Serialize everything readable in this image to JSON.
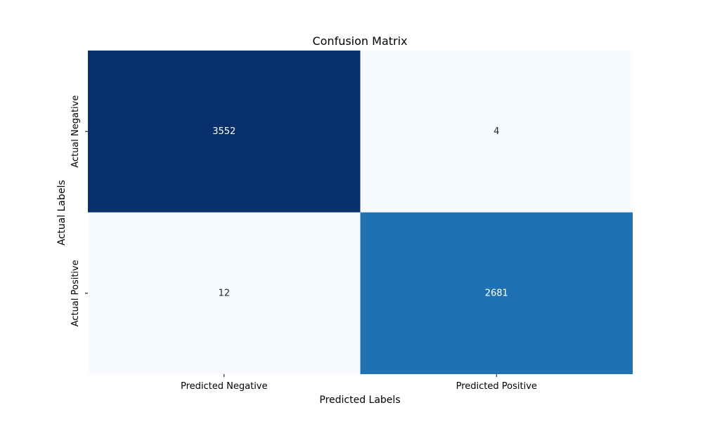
{
  "chart_data": {
    "type": "heatmap",
    "title": "Confusion Matrix",
    "xlabel": "Predicted Labels",
    "ylabel": "Actual Labels",
    "x_categories": [
      "Predicted Negative",
      "Predicted Positive"
    ],
    "y_categories": [
      "Actual Negative",
      "Actual Positive"
    ],
    "values": [
      [
        3552,
        4
      ],
      [
        12,
        2681
      ]
    ],
    "colormap": "Blues",
    "color_range": [
      4,
      3552
    ],
    "colorbar": false,
    "grid": false
  }
}
